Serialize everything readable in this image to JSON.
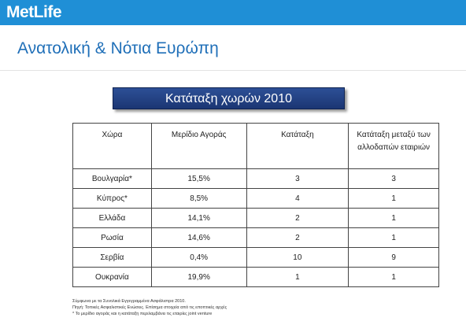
{
  "header": {
    "logo": "MetLife",
    "title": "Ανατολική & Νότια Ευρώπη"
  },
  "banner": "Κατάταξη χωρών 2010",
  "table": {
    "columns": [
      "Χώρα",
      "Μερίδιο Αγοράς",
      "Κατάταξη",
      "Κατάταξη μεταξύ των αλλοδαπών εταιριών"
    ],
    "rows": [
      [
        "Βουλγαρία*",
        "15,5%",
        "3",
        "3"
      ],
      [
        "Κύπρος*",
        "8,5%",
        "4",
        "1"
      ],
      [
        "Ελλάδα",
        "14,1%",
        "2",
        "1"
      ],
      [
        "Ρωσία",
        "14,6%",
        "2",
        "1"
      ],
      [
        "Σερβία",
        "0,4%",
        "10",
        "9"
      ],
      [
        "Ουκρανία",
        "19,9%",
        "1",
        "1"
      ]
    ]
  },
  "footnotes": [
    "Σύμφωνα με τα Συνολικά Εγγεγραμμένα Ασφάλιστρα 2010.",
    "Πηγή: Τοπικές Ασφαλιστικές Ενώσεις. Επίσημα στοιχεία από τις εποπτικές αρχές",
    "* Το μερίδιο αγοράς και η κατάταξη περιλαμβάνει τις εταιρίες joint venture"
  ]
}
